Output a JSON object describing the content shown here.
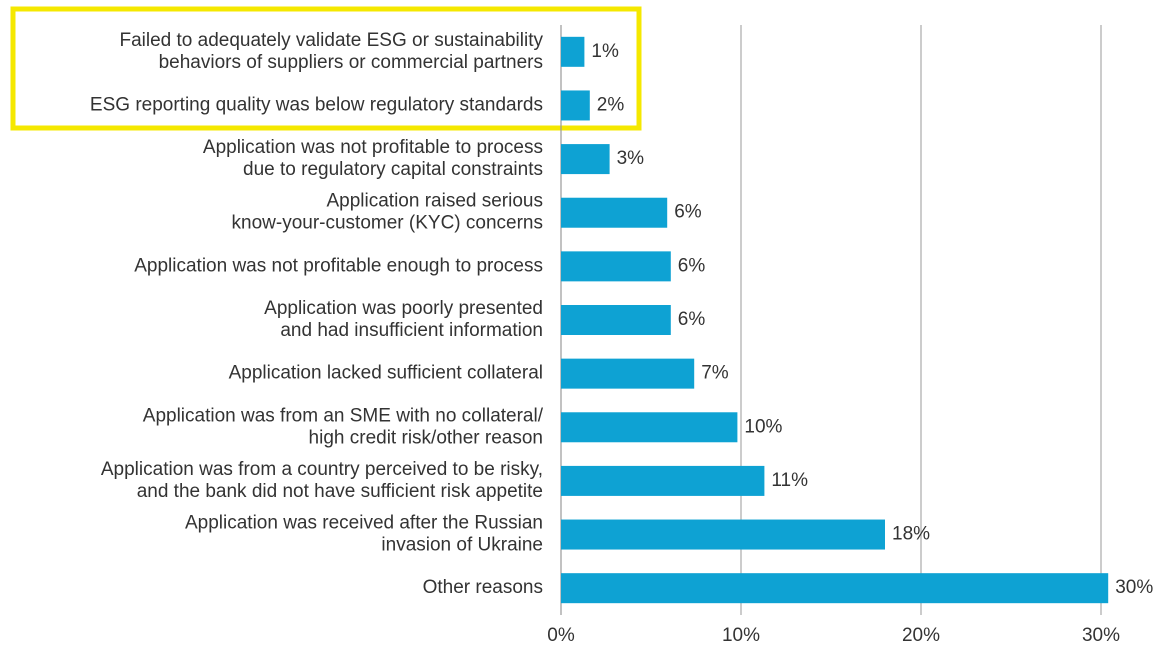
{
  "chart_data": {
    "type": "bar",
    "orientation": "horizontal",
    "categories": [
      "Failed to adequately validate ESG or sustainability\nbehaviors of suppliers or commercial partners",
      "ESG reporting quality was below regulatory standards",
      "Application was not profitable to process\ndue to regulatory capital constraints",
      "Application raised serious\nknow-your-customer (KYC) concerns",
      "Application was not profitable enough to process",
      "Application was poorly presented\nand had insufficient information",
      "Application lacked sufficient collateral",
      "Application was from an SME with no collateral/\nhigh credit risk/other reason",
      "Application was from a country perceived to be risky,\nand the bank did not have sufficient risk appetite",
      "Application was received after the Russian\ninvasion of Ukraine",
      "Other reasons"
    ],
    "values": [
      1.3,
      1.6,
      2.7,
      5.9,
      6.1,
      6.1,
      7.4,
      9.8,
      11.3,
      18.0,
      30.4
    ],
    "value_labels": [
      "1%",
      "2%",
      "3%",
      "6%",
      "6%",
      "6%",
      "7%",
      "10%",
      "11%",
      "18%",
      "30%"
    ],
    "color": "#0ea2d3",
    "xlim": [
      0,
      30
    ],
    "xticks": [
      {
        "value": 0,
        "label": "0%"
      },
      {
        "value": 10,
        "label": "10%"
      },
      {
        "value": 20,
        "label": "20%"
      },
      {
        "value": 30,
        "label": "30%"
      }
    ],
    "grid": true
  }
}
